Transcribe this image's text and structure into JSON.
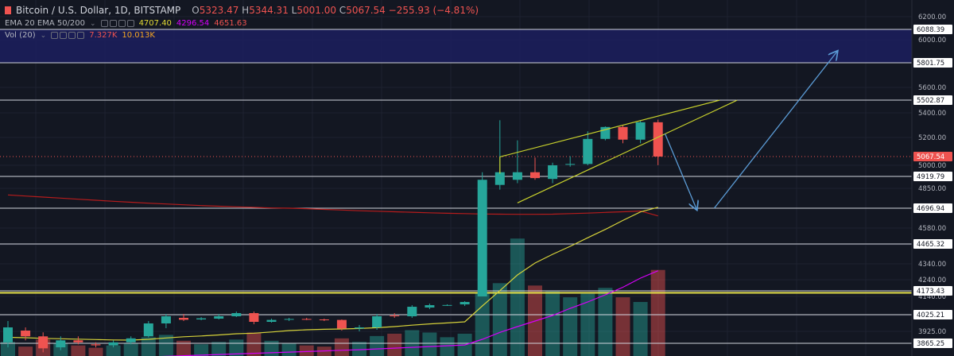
{
  "header": {
    "symbol": "Bitcoin / U.S. Dollar, 1D, BITSTAMP",
    "o_label": "O",
    "o_value": "5323.47",
    "h_label": "H",
    "h_value": "5344.31",
    "l_label": "L",
    "l_value": "5001.00",
    "c_label": "C",
    "c_value": "5067.54",
    "change": "−255.93 (−4.81%)",
    "flag_color": "#ef5350"
  },
  "indicators": {
    "ema_label": "EMA 20 EMA 50/200",
    "ema_values": [
      "4707.40",
      "4296.54",
      "4651.63"
    ],
    "ema_colors": [
      "#e0d934",
      "#d500f9",
      "#ef5350"
    ],
    "vol_label": "Vol (20)",
    "vol_values": [
      "7.327K",
      "10.013K"
    ],
    "vol_colors": [
      "#ef5350",
      "#f5a623"
    ]
  },
  "colors": {
    "background": "#131722",
    "up": "#26a69a",
    "down": "#ef5350",
    "level_line": "#d1d4dc",
    "wedge": "#c8d12c",
    "arrow": "#5b9bd5",
    "zone": "#1c1f5e",
    "price_tag_bg": "#ffffff",
    "last_price_bg": "#ef5350"
  },
  "icons": [
    "red-flag-icon",
    "chevron-down-icon",
    "visibility-icon",
    "settings-icon",
    "more-icon"
  ],
  "chart_data": {
    "type": "candlestick",
    "symbol": "Bitcoin / U.S. Dollar",
    "interval": "1D",
    "exchange": "BITSTAMP",
    "last_price": "5067.54",
    "price_axis_ticks": [
      "6200.00",
      "6000.00",
      "5800.00",
      "5600.00",
      "5400.00",
      "5200.00",
      "5000.00",
      "4850.00",
      "4700.00",
      "4580.00",
      "4460.00",
      "4340.00",
      "4240.00",
      "4140.00",
      "4025.00",
      "3925.00",
      "3865.25"
    ],
    "axis_ticks_numeric": [
      6200,
      6000,
      5800,
      5600,
      5400,
      5200,
      5000,
      4850,
      4700,
      4580,
      4460,
      4340,
      4240,
      4140,
      4025,
      3925,
      3865.25
    ],
    "horizontal_levels": [
      "6088.39",
      "5801.75",
      "5502.87",
      "4919.79",
      "4696.94",
      "4465.32",
      "4173.43",
      "4025.21",
      "3865.25"
    ],
    "levels_numeric": [
      6088.39,
      5801.75,
      5502.87,
      4919.79,
      4696.94,
      4465.32,
      4173.43,
      4025.21,
      3865.25
    ],
    "extra_levels": [
      4160
    ],
    "zone": [
      5801.75,
      6088.39
    ],
    "candles": [
      {
        "o": 3870,
        "h": 3990,
        "l": 3845,
        "c": 3950
      },
      {
        "o": 3930,
        "h": 3950,
        "l": 3880,
        "c": 3900
      },
      {
        "o": 3900,
        "h": 3920,
        "l": 3820,
        "c": 3840
      },
      {
        "o": 3845,
        "h": 3900,
        "l": 3830,
        "c": 3880
      },
      {
        "o": 3880,
        "h": 3900,
        "l": 3860,
        "c": 3870
      },
      {
        "o": 3860,
        "h": 3870,
        "l": 3845,
        "c": 3855
      },
      {
        "o": 3855,
        "h": 3880,
        "l": 3845,
        "c": 3870
      },
      {
        "o": 3870,
        "h": 3900,
        "l": 3860,
        "c": 3890
      },
      {
        "o": 3900,
        "h": 3990,
        "l": 3895,
        "c": 3975
      },
      {
        "o": 3975,
        "h": 4030,
        "l": 3945,
        "c": 4020
      },
      {
        "o": 4010,
        "h": 4030,
        "l": 3990,
        "c": 3998
      },
      {
        "o": 4000,
        "h": 4015,
        "l": 3995,
        "c": 4007
      },
      {
        "o": 4005,
        "h": 4030,
        "l": 4000,
        "c": 4020
      },
      {
        "o": 4020,
        "h": 4045,
        "l": 4015,
        "c": 4035
      },
      {
        "o": 4035,
        "h": 4045,
        "l": 3970,
        "c": 3985
      },
      {
        "o": 3985,
        "h": 4005,
        "l": 3980,
        "c": 3997
      },
      {
        "o": 3998,
        "h": 4010,
        "l": 3990,
        "c": 4003
      },
      {
        "o": 4003,
        "h": 4010,
        "l": 3996,
        "c": 4000
      },
      {
        "o": 4000,
        "h": 4005,
        "l": 3990,
        "c": 3995
      },
      {
        "o": 3997,
        "h": 4000,
        "l": 3930,
        "c": 3943
      },
      {
        "o": 3943,
        "h": 3965,
        "l": 3925,
        "c": 3950
      },
      {
        "o": 3950,
        "h": 4030,
        "l": 3935,
        "c": 4020
      },
      {
        "o": 4025,
        "h": 4035,
        "l": 4010,
        "c": 4020
      },
      {
        "o": 4020,
        "h": 4085,
        "l": 4010,
        "c": 4075
      },
      {
        "o": 4070,
        "h": 4095,
        "l": 4060,
        "c": 4085
      },
      {
        "o": 4085,
        "h": 4090,
        "l": 4080,
        "c": 4086
      },
      {
        "o": 4090,
        "h": 4110,
        "l": 4080,
        "c": 4105
      },
      {
        "o": 4140,
        "h": 4950,
        "l": 4140,
        "c": 4900
      },
      {
        "o": 4870,
        "h": 5340,
        "l": 4840,
        "c": 4950
      },
      {
        "o": 4900,
        "h": 5180,
        "l": 4880,
        "c": 4950
      },
      {
        "o": 4950,
        "h": 5060,
        "l": 4900,
        "c": 4910
      },
      {
        "o": 4905,
        "h": 5020,
        "l": 4880,
        "c": 5000
      },
      {
        "o": 5010,
        "h": 5070,
        "l": 4990,
        "c": 5010
      },
      {
        "o": 5010,
        "h": 5250,
        "l": 5000,
        "c": 5190
      },
      {
        "o": 5190,
        "h": 5290,
        "l": 5180,
        "c": 5285
      },
      {
        "o": 5285,
        "h": 5300,
        "l": 5160,
        "c": 5185
      },
      {
        "o": 5185,
        "h": 5340,
        "l": 5160,
        "c": 5323.47
      },
      {
        "o": 5323.47,
        "h": 5344.31,
        "l": 5001,
        "c": 5067.54
      }
    ],
    "ema_20": [
      3895,
      3893,
      3890,
      3888,
      3886,
      3884,
      3882,
      3881,
      3885,
      3892,
      3898,
      3902,
      3907,
      3913,
      3916,
      3922,
      3930,
      3935,
      3938,
      3940,
      3943,
      3948,
      3955,
      3964,
      3972,
      3978,
      3985,
      4080,
      4175,
      4270,
      4345,
      4400,
      4450,
      4510,
      4570,
      4625,
      4675,
      4707.4
    ],
    "ema_50": [
      3780,
      3782,
      3784,
      3786,
      3788,
      3790,
      3792,
      3794,
      3797,
      3800,
      3803,
      3806,
      3809,
      3812,
      3815,
      3818,
      3821,
      3824,
      3827,
      3830,
      3833,
      3837,
      3841,
      3845,
      3849,
      3853,
      3857,
      3885,
      3920,
      3955,
      3990,
      4025,
      4065,
      4105,
      4150,
      4195,
      4250,
      4296.54
    ],
    "ema_200": [
      4800,
      4792,
      4784,
      4776,
      4768,
      4760,
      4752,
      4745,
      4738,
      4732,
      4726,
      4720,
      4715,
      4710,
      4706,
      4702,
      4698,
      4694,
      4690,
      4686,
      4682,
      4679,
      4676,
      4673,
      4670,
      4667,
      4665,
      4663,
      4662,
      4661,
      4661,
      4662,
      4665,
      4668,
      4672,
      4676,
      4680,
      4651.63
    ],
    "volume": [
      1.2,
      0.8,
      1.4,
      1.1,
      0.9,
      0.7,
      0.9,
      1.1,
      1.6,
      1.8,
      1.3,
      1.0,
      1.2,
      1.4,
      2.0,
      1.3,
      1.1,
      0.9,
      0.8,
      1.5,
      1.2,
      1.7,
      1.9,
      2.2,
      2.0,
      1.6,
      1.9,
      5.4,
      6.2,
      10.0,
      6.0,
      5.5,
      5.0,
      5.3,
      5.8,
      5.0,
      4.6,
      7.327
    ],
    "volume_max": 10.013,
    "wedge": {
      "upper": {
        "from": {
          "i": 28,
          "p": 5065
        },
        "to": {
          "i": 40.5,
          "p": 5502
        }
      },
      "lower": {
        "from": {
          "i": 29,
          "p": 4740
        },
        "to": {
          "i": 41.5,
          "p": 5502
        }
      }
    },
    "projection_arrows": [
      {
        "from": {
          "i": 37.4,
          "p": 5230
        },
        "to": {
          "i": 39.2,
          "p": 4690
        }
      },
      {
        "from": {
          "i": 40.2,
          "p": 4700
        },
        "to": {
          "i": 47.2,
          "p": 5900
        }
      }
    ]
  }
}
